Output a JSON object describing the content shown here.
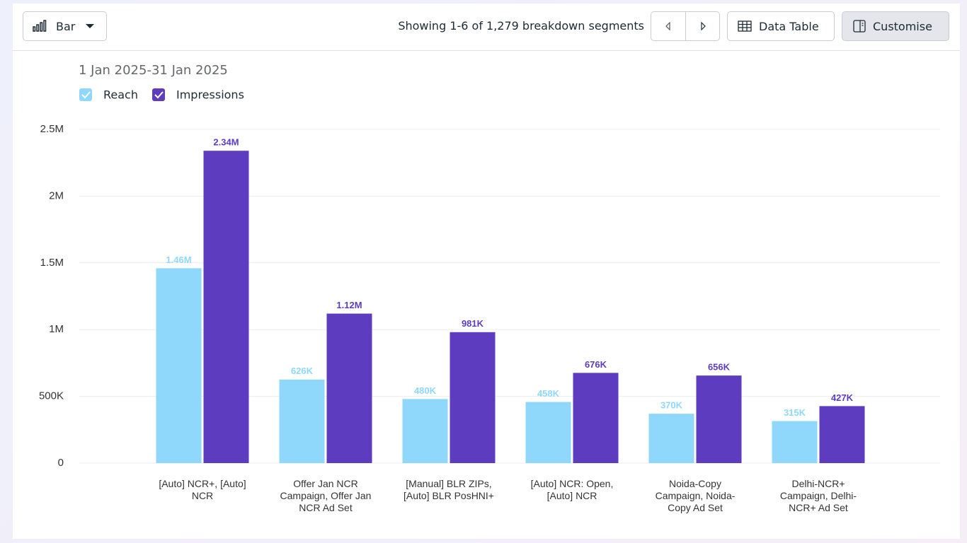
{
  "toolbar": {
    "chart_type": "Bar",
    "pagination": "Showing 1-6 of 1,279 breakdown segments",
    "data_table": "Data Table",
    "customise": "Customise"
  },
  "chart_data": {
    "type": "bar",
    "subtitle": "1 Jan 2025-31 Jan 2025",
    "categories": [
      "[Auto] NCR+, [Auto] NCR",
      "Offer Jan NCR Campaign, Offer Jan NCR Ad Set",
      "[Manual] BLR ZIPs, [Auto] BLR PosHNI+",
      "[Auto] NCR: Open, [Auto] NCR",
      "Noida-Copy Campaign, Noida-Copy Ad Set",
      "Delhi-NCR+ Campaign, Delhi-NCR+ Ad Set"
    ],
    "series": [
      {
        "name": "Reach",
        "color": "#8fd8fb",
        "values": [
          1460000,
          626000,
          480000,
          458000,
          370000,
          315000
        ],
        "value_labels": [
          "1.46M",
          "626K",
          "480K",
          "458K",
          "370K",
          "315K"
        ]
      },
      {
        "name": "Impressions",
        "color": "#5d3cc0",
        "values": [
          2340000,
          1120000,
          981000,
          676000,
          656000,
          427000
        ],
        "value_labels": [
          "2.34M",
          "1.12M",
          "981K",
          "676K",
          "656K",
          "427K"
        ]
      }
    ],
    "ylim": [
      0,
      2500000
    ],
    "yticks": [
      0,
      {
        "value": 500000,
        "label": "500K"
      },
      {
        "value": 1000000,
        "label": "1M"
      },
      {
        "value": 1500000,
        "label": "1.5M"
      },
      {
        "value": 2000000,
        "label": "2M"
      },
      {
        "value": 2500000,
        "label": "2.5M"
      }
    ],
    "grid": true
  }
}
